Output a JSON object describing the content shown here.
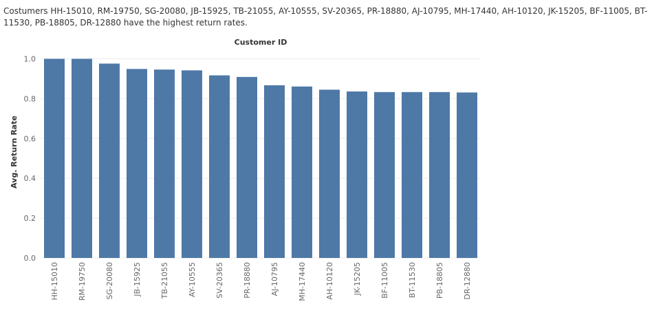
{
  "caption": "Costumers HH-15010, RM-19750, SG-20080, JB-15925, TB-21055, AY-10555, SV-20365, PR-18880, AJ-10795, MH-17440, AH-10120, JK-15205, BF-11005, BT-11530, PB-18805, DR-12880 have the highest return rates.",
  "chart_data": {
    "type": "bar",
    "title": "Customer ID",
    "xlabel": "",
    "ylabel": "Avg. Return Rate",
    "categories": [
      "HH-15010",
      "RM-19750",
      "SG-20080",
      "JB-15925",
      "TB-21055",
      "AY-10555",
      "SV-20365",
      "PR-18880",
      "AJ-10795",
      "MH-17440",
      "AH-10120",
      "JK-15205",
      "BF-11005",
      "BT-11530",
      "PB-18805",
      "DR-12880"
    ],
    "values": [
      1.0,
      1.0,
      0.976,
      0.949,
      0.946,
      0.942,
      0.917,
      0.909,
      0.867,
      0.861,
      0.845,
      0.836,
      0.833,
      0.833,
      0.833,
      0.831
    ],
    "ylim": [
      0,
      1.0
    ],
    "yticks": [
      0.0,
      0.2,
      0.4,
      0.6,
      0.8,
      1.0
    ],
    "ytick_labels": [
      "0.0",
      "0.2",
      "0.4",
      "0.6",
      "0.8",
      "1.0"
    ],
    "grid": true,
    "bar_color": "#4e79a7",
    "grid_color": "#ececec"
  }
}
